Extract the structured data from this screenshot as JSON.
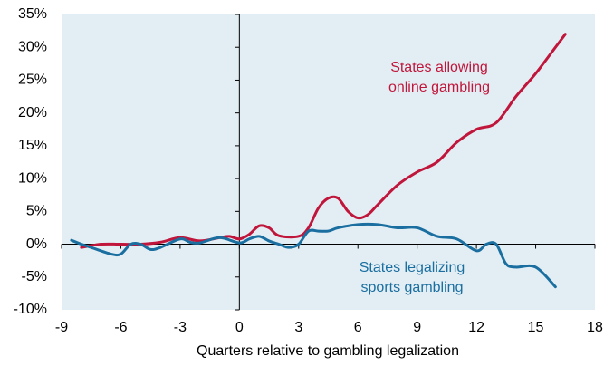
{
  "chart_data": {
    "type": "line",
    "xlabel": "Quarters relative to gambling legalization",
    "xlim": [
      -9,
      18
    ],
    "xticks": [
      -9,
      -6,
      -3,
      0,
      3,
      6,
      9,
      12,
      15,
      18
    ],
    "ylim": [
      -10,
      35
    ],
    "yticks": [
      {
        "value": -10,
        "label": "-10%"
      },
      {
        "value": -5,
        "label": "-5%"
      },
      {
        "value": 0,
        "label": "0%"
      },
      {
        "value": 5,
        "label": "5%"
      },
      {
        "value": 10,
        "label": "10%"
      },
      {
        "value": 15,
        "label": "15%"
      },
      {
        "value": 20,
        "label": "20%"
      },
      {
        "value": 25,
        "label": "25%"
      },
      {
        "value": 30,
        "label": "30%"
      },
      {
        "value": 35,
        "label": "35%"
      }
    ],
    "background": "#e3eef4",
    "series": [
      {
        "name": "States allowing online gambling",
        "label_lines": [
          "States allowing",
          "online gambling"
        ],
        "color": "#c0163b",
        "x": [
          -8,
          -7,
          -6,
          -5,
          -4,
          -3,
          -2,
          -1,
          -0.5,
          0,
          0.5,
          1,
          1.5,
          2,
          3,
          3.5,
          4,
          4.5,
          5,
          5.5,
          6,
          6.5,
          7,
          8,
          9,
          10,
          11,
          12,
          13,
          14,
          15,
          16,
          16.5
        ],
        "values": [
          -0.5,
          0,
          0,
          0,
          0.3,
          1,
          0.5,
          1,
          1.2,
          0.8,
          1.5,
          2.8,
          2.5,
          1.3,
          1.2,
          2.5,
          5.5,
          7,
          7,
          5,
          4,
          4.5,
          6,
          9,
          11,
          12.5,
          15.5,
          17.5,
          18.5,
          22.5,
          26,
          30,
          32
        ]
      },
      {
        "name": "States legalizing sports gambling",
        "label_lines": [
          "States legalizing",
          "sports gambling"
        ],
        "color": "#1a6fa0",
        "x": [
          -8.5,
          -8,
          -7.5,
          -6.5,
          -6,
          -5.5,
          -5,
          -4.5,
          -4,
          -3,
          -2.5,
          -2,
          -1,
          0,
          0.5,
          1,
          1.5,
          2,
          2.5,
          3,
          3.5,
          4,
          4.5,
          5,
          6,
          7,
          8,
          9,
          10,
          11,
          12,
          12.5,
          13,
          13.5,
          14,
          15,
          16
        ],
        "values": [
          0.6,
          0,
          -0.5,
          -1.5,
          -1.5,
          0,
          0,
          -0.8,
          -0.5,
          0.8,
          0.3,
          0.2,
          1,
          0.2,
          0.8,
          1.2,
          0.5,
          0,
          -0.5,
          0,
          2,
          2,
          2,
          2.5,
          3,
          3,
          2.5,
          2.5,
          1.2,
          0.8,
          -1,
          0,
          0,
          -3,
          -3.5,
          -3.5,
          -6.5
        ]
      }
    ]
  }
}
